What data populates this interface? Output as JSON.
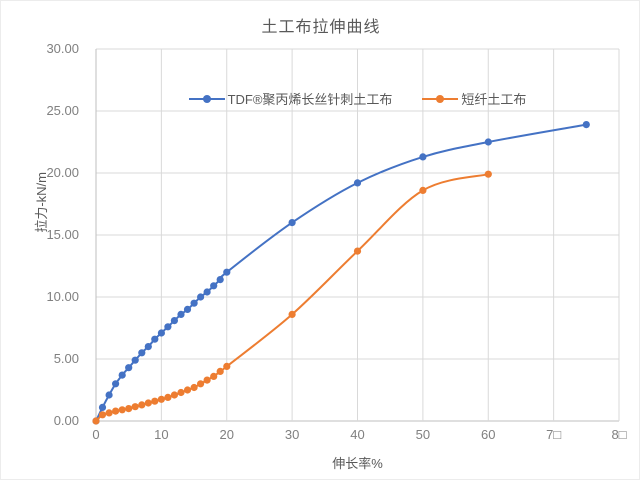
{
  "chart": {
    "title": "土工布拉伸曲线",
    "x_axis_title": "伸长率%",
    "y_axis_title": "拉力-kN/m",
    "colors": {
      "series1": "#4472C4",
      "series2": "#ED7D31",
      "grid": "#D9D9D9",
      "axis_line": "#BFBFBF",
      "tick_text": "#808080",
      "title_text": "#595959"
    }
  },
  "chart_data": {
    "type": "line",
    "title": "土工布拉伸曲线",
    "xlabel": "伸长率%",
    "ylabel": "拉力-kN/m",
    "xlim": [
      0,
      80
    ],
    "ylim": [
      0,
      30
    ],
    "grid": true,
    "legend_position": "top-inside-center",
    "x_tick_values": [
      0,
      10,
      20,
      30,
      40,
      50,
      60,
      70,
      80
    ],
    "x_tick_labels": [
      "0",
      "10",
      "20",
      "30",
      "40",
      "50",
      "60",
      "7□",
      "8□"
    ],
    "y_tick_values": [
      0,
      5,
      10,
      15,
      20,
      25,
      30
    ],
    "y_tick_labels": [
      "0.00",
      "5.00",
      "10.00",
      "15.00",
      "20.00",
      "25.00",
      "30.00"
    ],
    "series": [
      {
        "name": "TDF®聚丙烯长丝针刺土工布",
        "color": "#4472C4",
        "points": [
          [
            0,
            0
          ],
          [
            1,
            1.1
          ],
          [
            2,
            2.1
          ],
          [
            3,
            3.0
          ],
          [
            4,
            3.7
          ],
          [
            5,
            4.3
          ],
          [
            6,
            4.9
          ],
          [
            7,
            5.5
          ],
          [
            8,
            6.0
          ],
          [
            9,
            6.6
          ],
          [
            10,
            7.1
          ],
          [
            11,
            7.6
          ],
          [
            12,
            8.1
          ],
          [
            13,
            8.6
          ],
          [
            14,
            9.0
          ],
          [
            15,
            9.5
          ],
          [
            16,
            10.0
          ],
          [
            17,
            10.4
          ],
          [
            18,
            10.9
          ],
          [
            19,
            11.4
          ],
          [
            20,
            12.0
          ],
          [
            30,
            16.0
          ],
          [
            40,
            19.2
          ],
          [
            50,
            21.3
          ],
          [
            60,
            22.5
          ],
          [
            75,
            23.9
          ]
        ]
      },
      {
        "name": "短纤土工布",
        "color": "#ED7D31",
        "points": [
          [
            0,
            0
          ],
          [
            1,
            0.5
          ],
          [
            2,
            0.65
          ],
          [
            3,
            0.8
          ],
          [
            4,
            0.9
          ],
          [
            5,
            1.0
          ],
          [
            6,
            1.15
          ],
          [
            7,
            1.3
          ],
          [
            8,
            1.45
          ],
          [
            9,
            1.6
          ],
          [
            10,
            1.75
          ],
          [
            11,
            1.9
          ],
          [
            12,
            2.1
          ],
          [
            13,
            2.3
          ],
          [
            14,
            2.5
          ],
          [
            15,
            2.7
          ],
          [
            16,
            3.0
          ],
          [
            17,
            3.3
          ],
          [
            18,
            3.6
          ],
          [
            19,
            4.0
          ],
          [
            20,
            4.4
          ],
          [
            30,
            8.6
          ],
          [
            40,
            13.7
          ],
          [
            50,
            18.6
          ],
          [
            60,
            19.9
          ]
        ]
      }
    ]
  }
}
